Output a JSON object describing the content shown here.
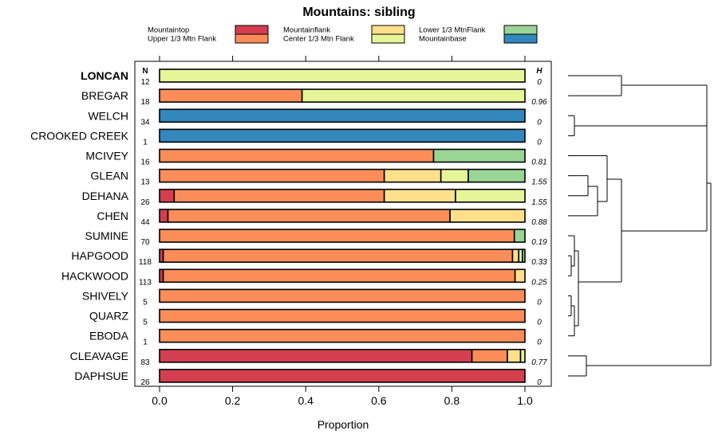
{
  "chart_data": {
    "type": "bar",
    "stacked": true,
    "orientation": "horizontal",
    "title": "Mountains: sibling",
    "xlabel": "Proportion",
    "ylabel": "",
    "xlim": [
      0,
      1
    ],
    "x_ticks": [
      0,
      0.2,
      0.4,
      0.6,
      0.8,
      1
    ],
    "x_tick_labels": [
      "0.0",
      "0.2",
      "0.4",
      "0.6",
      "0.8",
      "1.0"
    ],
    "n_header": "N",
    "h_header": "H",
    "legend_position": "top",
    "series": [
      {
        "name": "Mountaintop",
        "color": "#d53e4f"
      },
      {
        "name": "Upper 1/3 Mtn Flank",
        "color": "#fc8d59"
      },
      {
        "name": "Mountainflank",
        "color": "#fee08b"
      },
      {
        "name": "Center 1/3 Mtn Flank",
        "color": "#e6f598"
      },
      {
        "name": "Lower 1/3 MtnFlank",
        "color": "#99d594"
      },
      {
        "name": "Mountainbase",
        "color": "#3288bd"
      }
    ],
    "rows": [
      {
        "label": "LONCAN",
        "bold": true,
        "n": "12",
        "h": "0",
        "values": [
          0,
          0,
          0,
          1,
          0,
          0
        ]
      },
      {
        "label": "BREGAR",
        "n": "18",
        "h": "0.96",
        "values": [
          0,
          0.39,
          0,
          0.61,
          0,
          0
        ]
      },
      {
        "label": "WELCH",
        "n": "34",
        "h": "0",
        "values": [
          0,
          0,
          0,
          0,
          0,
          1
        ]
      },
      {
        "label": "CROOKED CREEK",
        "n": "1",
        "h": "0",
        "values": [
          0,
          0,
          0,
          0,
          0,
          1
        ]
      },
      {
        "label": "MCIVEY",
        "n": "16",
        "h": "0.81",
        "values": [
          0,
          0.75,
          0,
          0,
          0.25,
          0
        ]
      },
      {
        "label": "GLEAN",
        "n": "13",
        "h": "1.55",
        "values": [
          0,
          0.615,
          0.155,
          0.075,
          0.155,
          0
        ]
      },
      {
        "label": "DEHANA",
        "n": "26",
        "h": "1.55",
        "values": [
          0.04,
          0.575,
          0.195,
          0.19,
          0,
          0
        ]
      },
      {
        "label": "CHEN",
        "n": "44",
        "h": "0.88",
        "values": [
          0.023,
          0.772,
          0.205,
          0,
          0,
          0
        ]
      },
      {
        "label": "SUMINE",
        "n": "70",
        "h": "0.19",
        "values": [
          0,
          0.971,
          0,
          0,
          0.029,
          0
        ]
      },
      {
        "label": "HAPGOOD",
        "n": "118",
        "h": "0.33",
        "values": [
          0.01,
          0.956,
          0.017,
          0.01,
          0.007,
          0
        ]
      },
      {
        "label": "HACKWOOD",
        "n": "113",
        "h": "0.25",
        "values": [
          0.01,
          0.963,
          0.027,
          0,
          0,
          0
        ]
      },
      {
        "label": "SHIVELY",
        "n": "5",
        "h": "0",
        "values": [
          0,
          1,
          0,
          0,
          0,
          0
        ]
      },
      {
        "label": "QUARZ",
        "n": "5",
        "h": "0",
        "values": [
          0,
          1,
          0,
          0,
          0,
          0
        ]
      },
      {
        "label": "EBODA",
        "n": "1",
        "h": "0",
        "values": [
          0,
          1,
          0,
          0,
          0,
          0
        ]
      },
      {
        "label": "CLEAVAGE",
        "n": "83",
        "h": "0.77",
        "values": [
          0.855,
          0.097,
          0.036,
          0.012,
          0,
          0
        ]
      },
      {
        "label": "DAPHSUE",
        "n": "26",
        "h": "0",
        "values": [
          1,
          0,
          0,
          0,
          0,
          0
        ]
      }
    ]
  }
}
